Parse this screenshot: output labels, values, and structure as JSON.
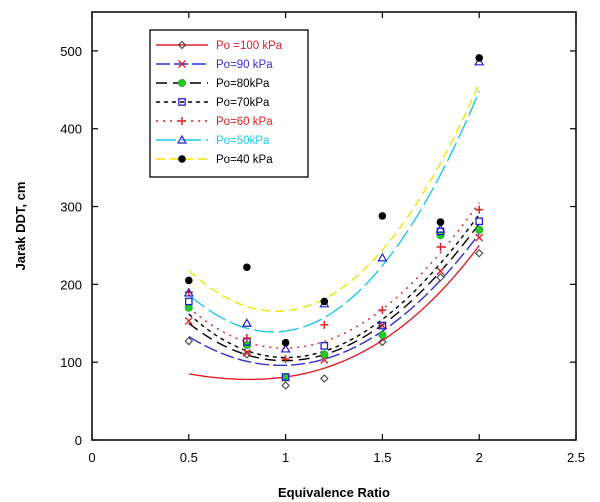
{
  "chart_data": {
    "type": "scatter",
    "title": "",
    "xlabel": "Equivalence Ratio",
    "ylabel": "Jarak DDT, cm",
    "xlim": [
      0,
      2.5
    ],
    "ylim": [
      0,
      550
    ],
    "xticks": [
      "0",
      "0.5",
      "1",
      "1.5",
      "2",
      "2.5"
    ],
    "yticks": [
      "0",
      "100",
      "200",
      "300",
      "400",
      "500"
    ],
    "x": [
      0.5,
      0.8,
      1.0,
      1.2,
      1.5,
      1.8,
      2.0
    ],
    "legend_position": "top-left",
    "series": [
      {
        "name": "Po =100 kPa",
        "color": "#e0202a",
        "marker": "diamond",
        "dash": "",
        "values": [
          127,
          110,
          70,
          79,
          126,
          209,
          240
        ],
        "fit": [
          0.5,
          1.0,
          1.5,
          2.0,
          85,
          81,
          128,
          250
        ]
      },
      {
        "name": "Po=90 kPa",
        "color": "#3030d0",
        "marker": "x",
        "dash": "14,4",
        "values": [
          153,
          112,
          80,
          103,
          147,
          217,
          260
        ],
        "fit": [
          0.5,
          1.0,
          1.5,
          2.0,
          133,
          96,
          140,
          265
        ]
      },
      {
        "name": "Po=80kPa",
        "color": "#000000",
        "marker": "circle-green",
        "dash": "11,6",
        "values": [
          170,
          122,
          80,
          110,
          135,
          263,
          270
        ],
        "fit": [
          0.5,
          1.0,
          1.5,
          2.0,
          150,
          102,
          148,
          278
        ]
      },
      {
        "name": "Po=70kPa",
        "color": "#000000",
        "marker": "square-blue",
        "dash": "4,4",
        "values": [
          178,
          126,
          81,
          121,
          147,
          268,
          281
        ],
        "fit": [
          0.5,
          1.0,
          1.5,
          2.0,
          162,
          106,
          155,
          290
        ]
      },
      {
        "name": "Po=60 kPa",
        "color": "#e02020",
        "marker": "plus",
        "dash": "2,5",
        "values": [
          190,
          131,
          104,
          148,
          167,
          248,
          296
        ],
        "fit": [
          0.5,
          1.0,
          1.5,
          2.0,
          170,
          118,
          168,
          305
        ]
      },
      {
        "name": "Po=50kPa",
        "color": "#20c8e8",
        "marker": "triangle",
        "dash": "20,5",
        "values": [
          189,
          150,
          117,
          175,
          234,
          271,
          486
        ],
        "fit": [
          0.5,
          1.0,
          1.5,
          2.0,
          187,
          140,
          224,
          448
        ]
      },
      {
        "name": "Po=40 kPa",
        "color": "#f2e400",
        "marker": "dot-black",
        "dash": "9,5",
        "values": [
          205,
          222,
          125,
          178,
          288,
          280,
          491
        ],
        "fit": [
          0.5,
          1.0,
          1.5,
          2.0,
          218,
          166,
          244,
          458
        ]
      }
    ]
  }
}
